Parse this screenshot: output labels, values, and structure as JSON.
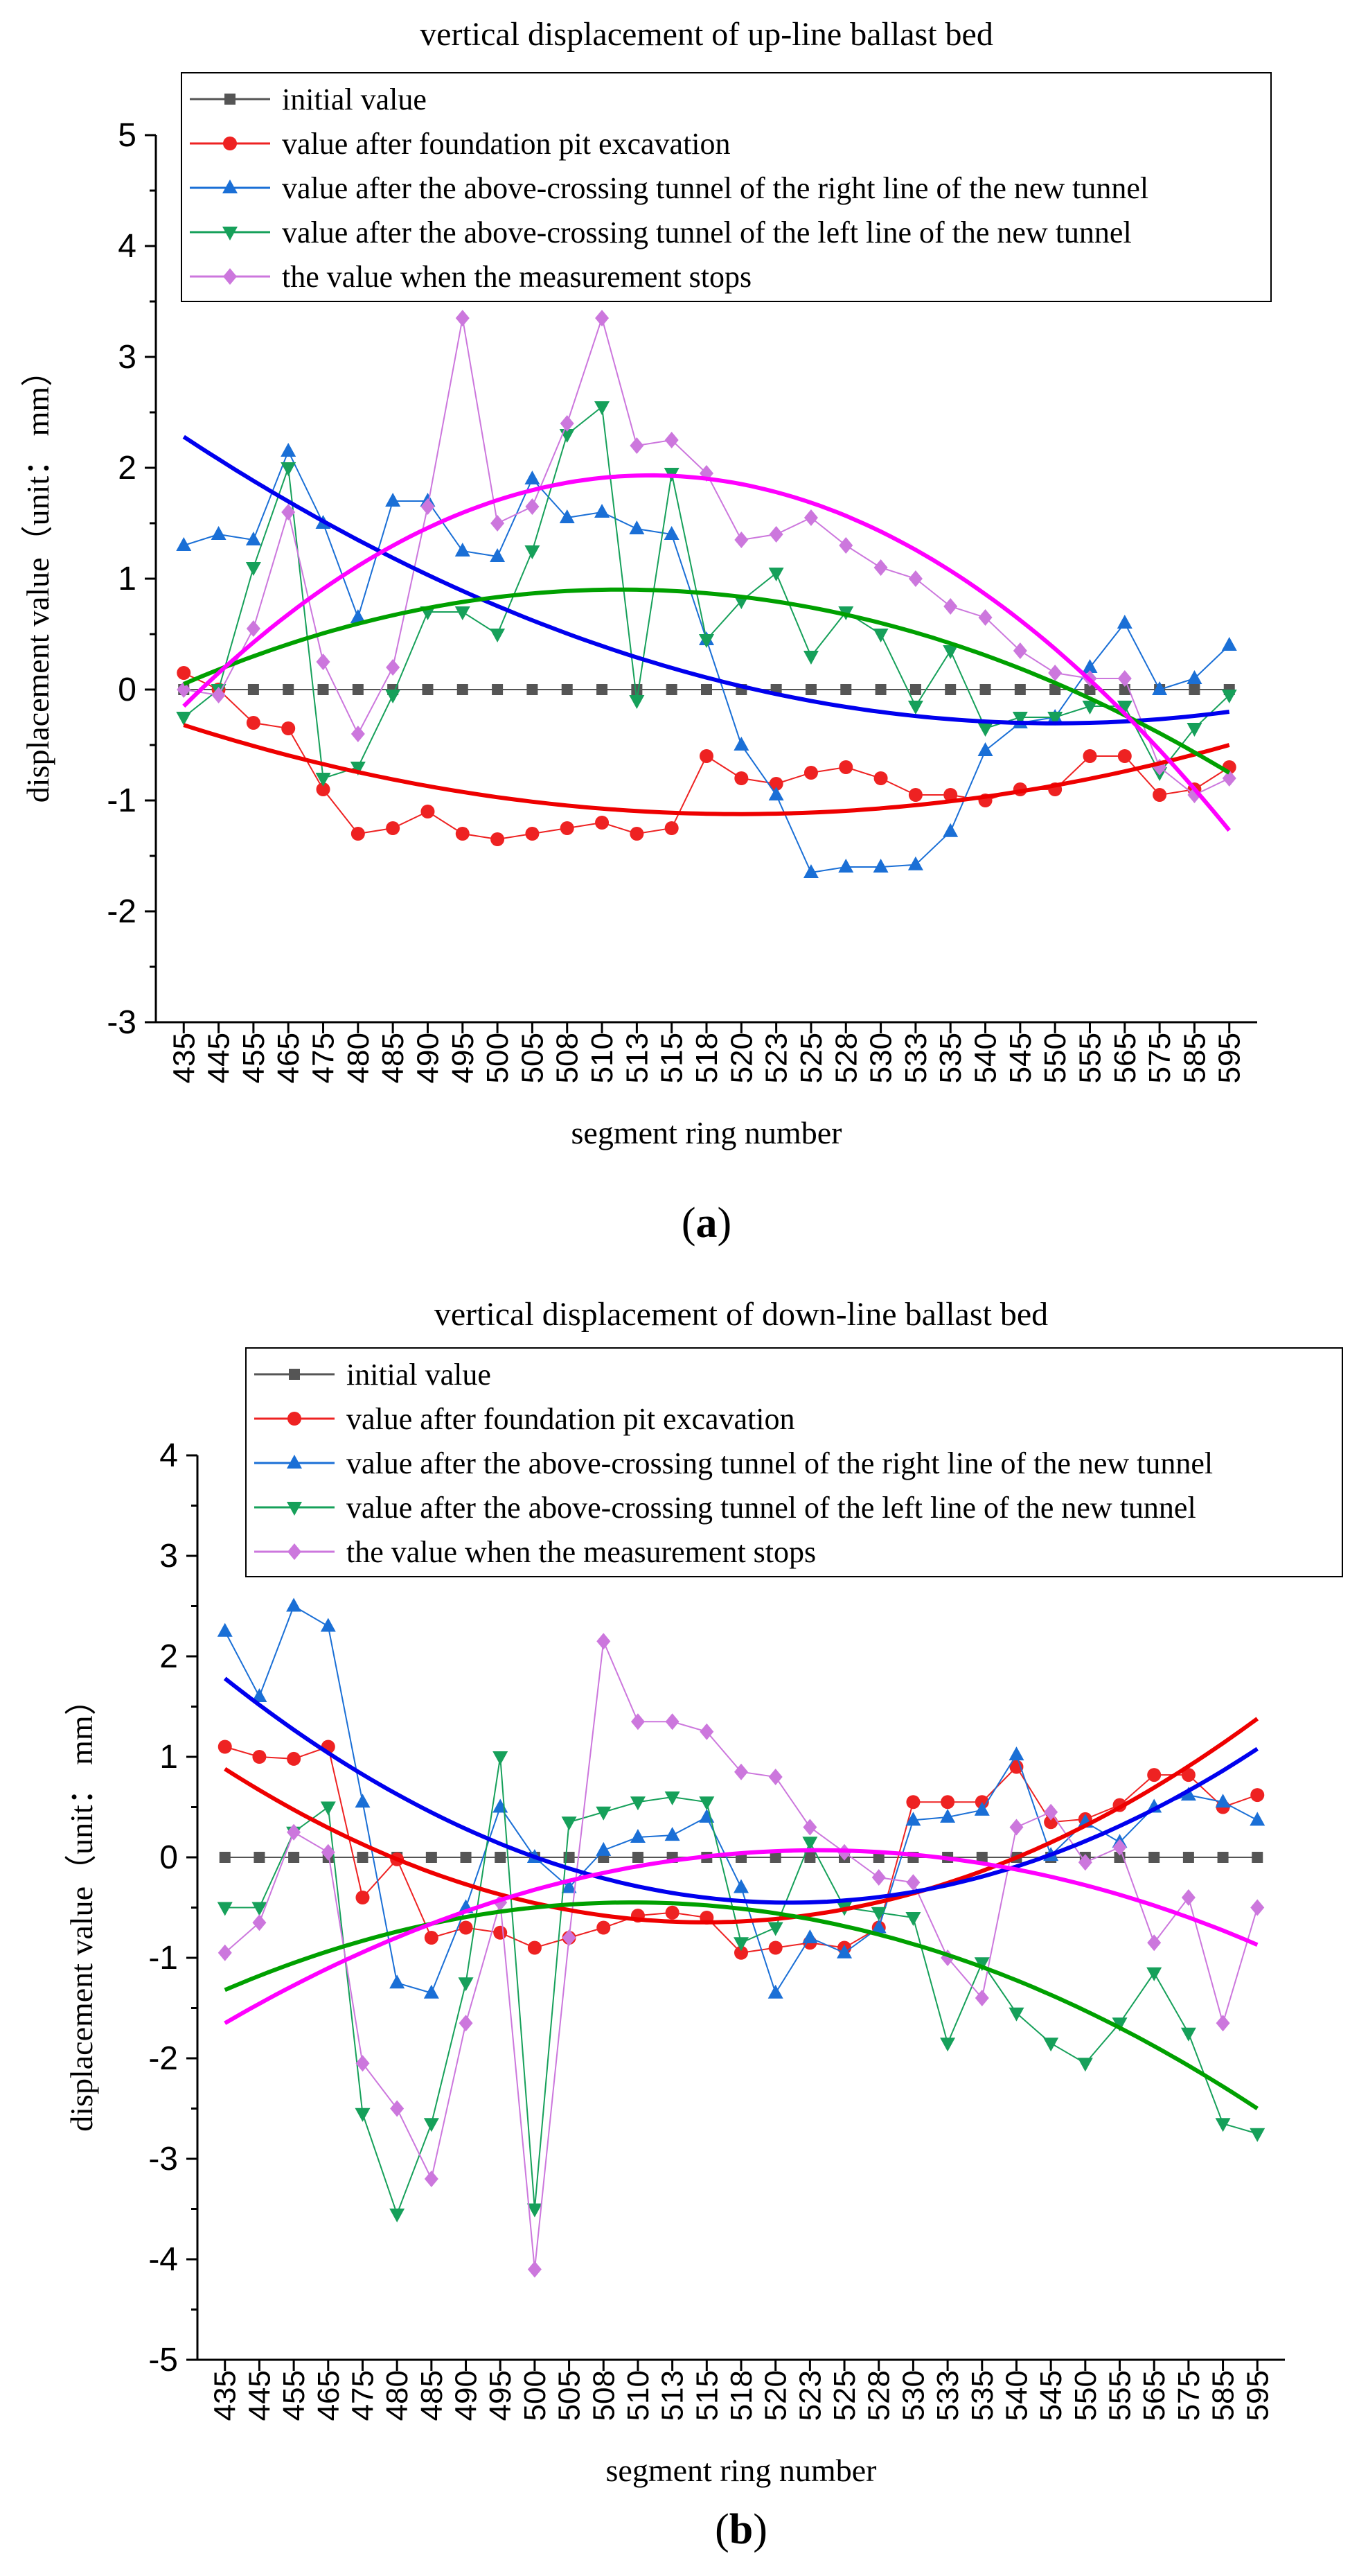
{
  "figure": {
    "panel_labels": [
      {
        "open": "(",
        "letter": "a",
        "close": ")"
      },
      {
        "open": "(",
        "letter": "b",
        "close": ")"
      }
    ]
  },
  "chart_data": [
    {
      "type": "line",
      "title": "vertical displacement of up-line ballast bed",
      "xlabel": "segment ring number",
      "ylabel": "displacement value（unit： mm）",
      "ylim": [
        -3,
        5
      ],
      "yticks": [
        -3,
        -2,
        -1,
        0,
        1,
        2,
        3,
        4,
        5
      ],
      "grid": false,
      "legend_position": "top-left",
      "categories": [
        "435",
        "445",
        "455",
        "465",
        "475",
        "480",
        "485",
        "490",
        "495",
        "500",
        "505",
        "508",
        "510",
        "513",
        "515",
        "518",
        "520",
        "523",
        "525",
        "528",
        "530",
        "533",
        "535",
        "540",
        "545",
        "550",
        "555",
        "565",
        "575",
        "585",
        "595"
      ],
      "series": [
        {
          "name": "initial value",
          "color": "#555555",
          "marker": "square",
          "values": [
            0,
            0,
            0,
            0,
            0,
            0,
            0,
            0,
            0,
            0,
            0,
            0,
            0,
            0,
            0,
            0,
            0,
            0,
            0,
            0,
            0,
            0,
            0,
            0,
            0,
            0,
            0,
            0,
            0,
            0,
            0
          ]
        },
        {
          "name": "value after foundation pit excavation",
          "color": "#ee2222",
          "marker": "circle",
          "values": [
            0.15,
            0,
            -0.3,
            -0.35,
            -0.9,
            -1.3,
            -1.25,
            -1.1,
            -1.3,
            -1.35,
            -1.3,
            -1.25,
            -1.2,
            -1.3,
            -1.25,
            -0.6,
            -0.8,
            -0.85,
            -0.75,
            -0.7,
            -0.8,
            -0.95,
            -0.95,
            -1.0,
            -0.9,
            -0.9,
            -0.6,
            -0.6,
            -0.95,
            -0.9,
            -0.7
          ]
        },
        {
          "name": "value after the above-crossing tunnel of the right line of the new tunnel",
          "color": "#1a6fd6",
          "marker": "triangle-up",
          "values": [
            1.3,
            1.4,
            1.35,
            2.15,
            1.5,
            0.65,
            1.7,
            1.7,
            1.25,
            1.2,
            1.9,
            1.55,
            1.6,
            1.45,
            1.4,
            0.45,
            -0.5,
            -0.95,
            -1.65,
            -1.6,
            -1.6,
            -1.58,
            -1.28,
            -0.55,
            -0.3,
            -0.25,
            0.2,
            0.6,
            0.0,
            0.1,
            0.4
          ]
        },
        {
          "name": "value after the above-crossing tunnel of the left line of the new tunnel",
          "color": "#16a05a",
          "marker": "triangle-down",
          "values": [
            -0.25,
            0,
            1.1,
            2.0,
            -0.8,
            -0.7,
            -0.05,
            0.7,
            0.7,
            0.5,
            1.25,
            2.3,
            2.55,
            -0.1,
            1.95,
            0.45,
            0.8,
            1.05,
            0.3,
            0.7,
            0.5,
            -0.15,
            0.35,
            -0.35,
            -0.25,
            -0.25,
            -0.15,
            -0.15,
            -0.75,
            -0.35,
            -0.05
          ]
        },
        {
          "name": "the value when the measurement stops",
          "color": "#cc77dd",
          "marker": "diamond",
          "values": [
            0,
            -0.05,
            0.55,
            1.6,
            0.25,
            -0.4,
            0.2,
            1.65,
            3.35,
            1.5,
            1.65,
            2.4,
            3.35,
            2.2,
            2.25,
            1.95,
            1.35,
            1.4,
            1.55,
            1.3,
            1.1,
            1.0,
            0.75,
            0.65,
            0.35,
            0.15,
            0.1,
            0.1,
            -0.7,
            -0.95,
            -0.8
          ]
        }
      ],
      "trendlines": [
        {
          "series": "value after foundation pit excavation",
          "color": "#ee0000",
          "values": [
            -0.32,
            -1.12,
            -0.5
          ],
          "at": [
            "435",
            "518",
            "595"
          ]
        },
        {
          "series": "value after the above-crossing tunnel of the right line of the new tunnel",
          "color": "#0000ee",
          "values": [
            2.28,
            -0.3,
            -0.2
          ],
          "at": [
            "435",
            "555",
            "595"
          ]
        },
        {
          "series": "value after the above-crossing tunnel of the left line of the new tunnel",
          "color": "#00a000",
          "values": [
            0.05,
            0.9,
            -0.75
          ],
          "at": [
            "435",
            "510",
            "595"
          ]
        },
        {
          "series": "the value when the measurement stops",
          "color": "#ff00ff",
          "values": [
            -0.15,
            1.93,
            -1.27
          ],
          "at": [
            "435",
            "513",
            "595"
          ]
        }
      ]
    },
    {
      "type": "line",
      "title": "vertical displacement of down-line ballast bed",
      "xlabel": "segment ring number",
      "ylabel": "displacement value（unit： mm）",
      "ylim": [
        -5,
        4
      ],
      "yticks": [
        -5,
        -4,
        -3,
        -2,
        -1,
        0,
        1,
        2,
        3,
        4
      ],
      "grid": false,
      "legend_position": "top-left",
      "categories": [
        "435",
        "445",
        "455",
        "465",
        "475",
        "480",
        "485",
        "490",
        "495",
        "500",
        "505",
        "508",
        "510",
        "513",
        "515",
        "518",
        "520",
        "523",
        "525",
        "528",
        "530",
        "533",
        "535",
        "540",
        "545",
        "550",
        "555",
        "565",
        "575",
        "585",
        "595"
      ],
      "series": [
        {
          "name": "initial value",
          "color": "#555555",
          "marker": "square",
          "values": [
            0,
            0,
            0,
            0,
            0,
            0,
            0,
            0,
            0,
            0,
            0,
            0,
            0,
            0,
            0,
            0,
            0,
            0,
            0,
            0,
            0,
            0,
            0,
            0,
            0,
            0,
            0,
            0,
            0,
            0,
            0
          ]
        },
        {
          "name": "value after foundation pit excavation",
          "color": "#ee2222",
          "marker": "circle",
          "values": [
            1.1,
            1.0,
            0.98,
            1.1,
            -0.4,
            -0.02,
            -0.8,
            -0.7,
            -0.75,
            -0.9,
            -0.8,
            -0.7,
            -0.58,
            -0.55,
            -0.6,
            -0.95,
            -0.9,
            -0.85,
            -0.9,
            -0.7,
            0.55,
            0.55,
            0.55,
            0.9,
            0.35,
            0.38,
            0.52,
            0.82,
            0.82,
            0.5,
            0.62
          ]
        },
        {
          "name": "value after the above-crossing tunnel of the right line of the new tunnel",
          "color": "#1a6fd6",
          "marker": "triangle-up",
          "values": [
            2.25,
            1.6,
            2.5,
            2.3,
            0.55,
            -1.25,
            -1.35,
            -0.5,
            0.5,
            0.0,
            -0.3,
            0.07,
            0.2,
            0.22,
            0.4,
            -0.3,
            -1.35,
            -0.8,
            -0.95,
            -0.7,
            0.37,
            0.4,
            0.47,
            1.02,
            0.02,
            0.35,
            0.15,
            0.5,
            0.62,
            0.55,
            0.37
          ]
        },
        {
          "name": "value after the above-crossing tunnel of the left line of the new tunnel",
          "color": "#16a05a",
          "marker": "triangle-down",
          "values": [
            -0.5,
            -0.5,
            0.25,
            0.5,
            -2.55,
            -3.55,
            -2.65,
            -1.25,
            1.0,
            -3.5,
            0.35,
            0.45,
            0.55,
            0.6,
            0.55,
            -0.85,
            -0.7,
            0.15,
            -0.5,
            -0.55,
            -0.6,
            -1.85,
            -1.05,
            -1.55,
            -1.85,
            -2.05,
            -1.65,
            -1.15,
            -1.75,
            -2.65,
            -2.75
          ]
        },
        {
          "name": "the value when the measurement stops",
          "color": "#cc77dd",
          "marker": "diamond",
          "values": [
            -0.95,
            -0.65,
            0.25,
            0.05,
            -2.05,
            -2.5,
            -3.2,
            -1.65,
            -0.45,
            -4.1,
            -0.8,
            2.15,
            1.35,
            1.35,
            1.25,
            0.85,
            0.8,
            0.3,
            0.05,
            -0.2,
            -0.25,
            -1.0,
            -1.4,
            0.3,
            0.45,
            -0.05,
            0.1,
            -0.85,
            -0.4,
            -1.65,
            -0.5
          ]
        }
      ],
      "trendlines": [
        {
          "series": "value after foundation pit excavation",
          "color": "#ee0000",
          "values": [
            0.88,
            -0.64,
            1.38
          ],
          "at": [
            "435",
            "513",
            "595"
          ]
        },
        {
          "series": "value after the above-crossing tunnel of the right line of the new tunnel",
          "color": "#0000ee",
          "values": [
            1.78,
            -0.43,
            1.08
          ],
          "at": [
            "435",
            "525",
            "595"
          ]
        },
        {
          "series": "value after the above-crossing tunnel of the left line of the new tunnel",
          "color": "#00a000",
          "values": [
            -1.32,
            -0.47,
            -2.5
          ],
          "at": [
            "435",
            "505",
            "595"
          ]
        },
        {
          "series": "the value when the measurement stops",
          "color": "#ff00ff",
          "values": [
            -1.65,
            0.07,
            -0.87
          ],
          "at": [
            "435",
            "523",
            "595"
          ]
        }
      ]
    }
  ]
}
